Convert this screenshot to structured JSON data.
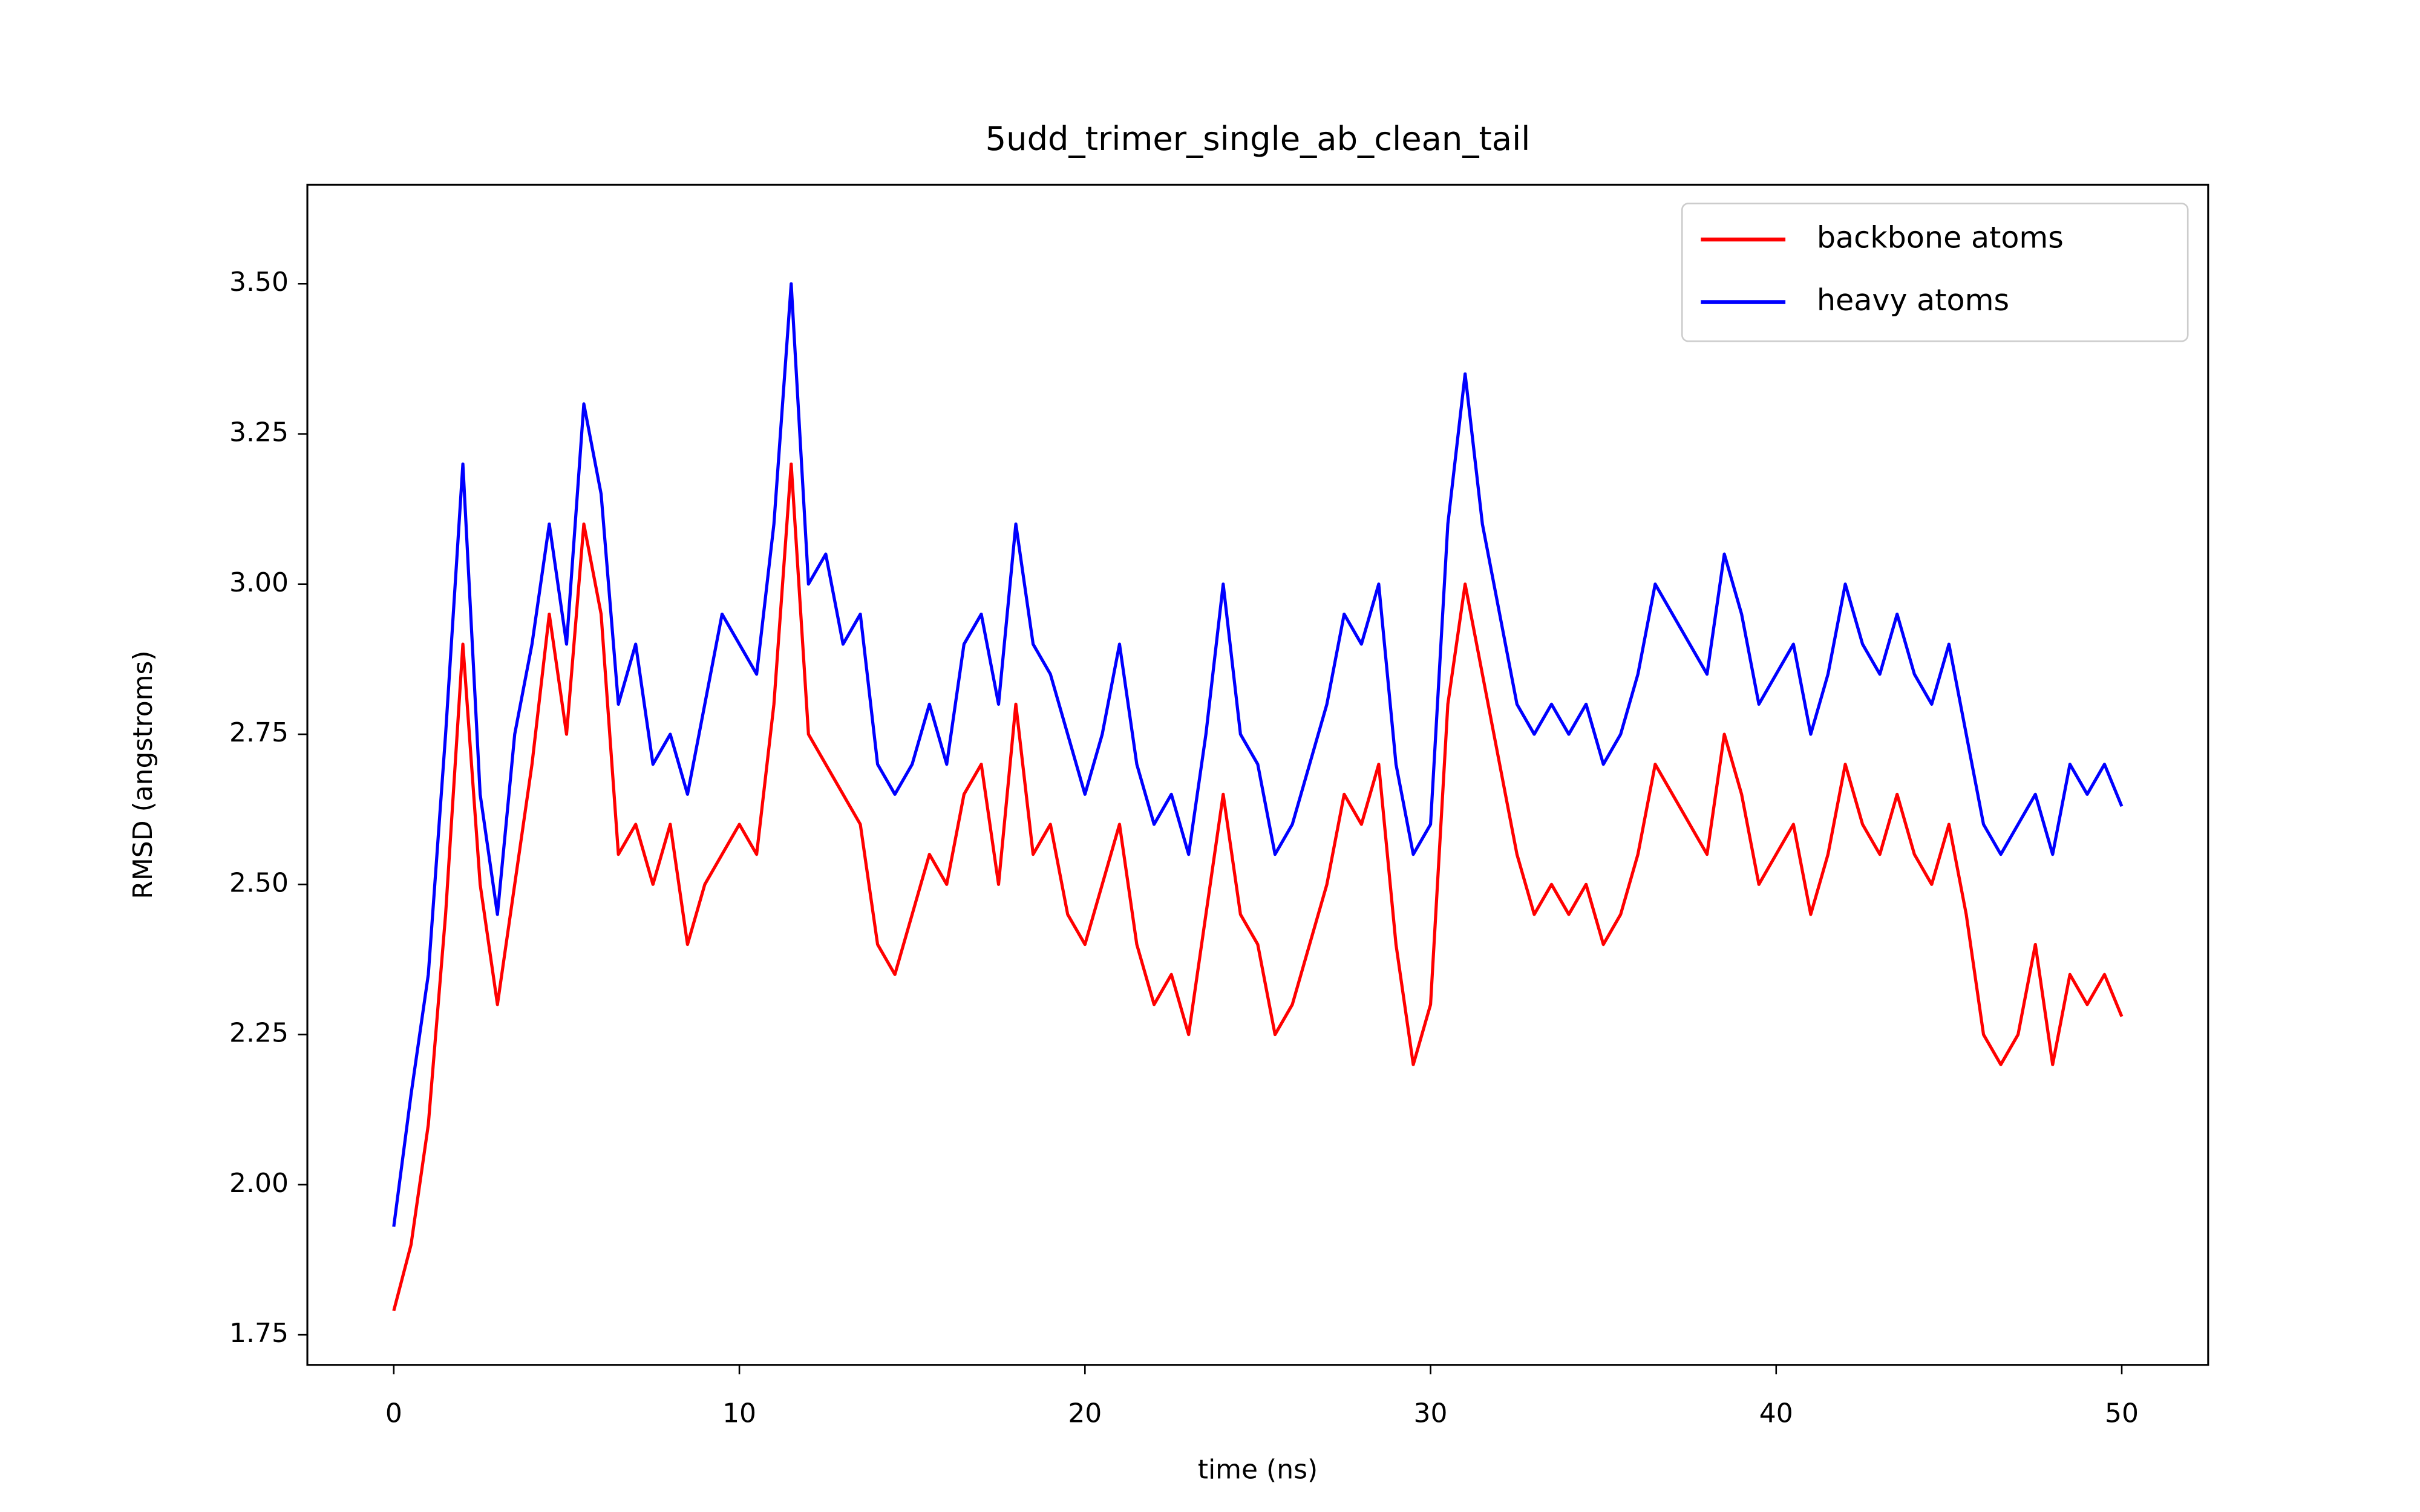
{
  "chart_data": {
    "type": "line",
    "title": "5udd_trimer_single_ab_clean_tail",
    "x_label": "time (ns)",
    "y_label": "RMSD (angstroms)",
    "x": [
      0,
      0.5,
      1,
      1.5,
      2,
      2.5,
      3,
      3.5,
      4,
      4.5,
      5,
      5.5,
      6,
      6.5,
      7,
      7.5,
      8,
      8.5,
      9,
      9.5,
      10,
      10.5,
      11,
      11.5,
      12,
      12.5,
      13,
      13.5,
      14,
      14.5,
      15,
      15.5,
      16,
      16.5,
      17,
      17.5,
      18,
      18.5,
      19,
      19.5,
      20,
      20.5,
      21,
      21.5,
      22,
      22.5,
      23,
      23.5,
      24,
      24.5,
      25,
      25.5,
      26,
      26.5,
      27,
      27.5,
      28,
      28.5,
      29,
      29.5,
      30,
      30.5,
      31,
      31.5,
      32,
      32.5,
      33,
      33.5,
      34,
      34.5,
      35,
      35.5,
      36,
      36.5,
      37,
      37.5,
      38,
      38.5,
      39,
      39.5,
      40,
      40.5,
      41,
      41.5,
      42,
      42.5,
      43,
      43.5,
      44,
      44.5,
      45,
      45.5,
      46,
      46.5,
      47,
      47.5,
      48,
      48.5,
      49,
      49.5,
      50
    ],
    "series": [
      {
        "name": "backbone atoms",
        "color": "#ff0000",
        "values": [
          1.79,
          1.9,
          2.1,
          2.45,
          2.9,
          2.5,
          2.3,
          2.5,
          2.7,
          2.95,
          2.75,
          3.1,
          2.95,
          2.55,
          2.6,
          2.5,
          2.6,
          2.4,
          2.5,
          2.55,
          2.6,
          2.55,
          2.8,
          3.2,
          2.75,
          2.7,
          2.65,
          2.6,
          2.4,
          2.35,
          2.45,
          2.55,
          2.5,
          2.65,
          2.7,
          2.5,
          2.8,
          2.55,
          2.6,
          2.45,
          2.4,
          2.5,
          2.6,
          2.4,
          2.3,
          2.35,
          2.25,
          2.45,
          2.65,
          2.45,
          2.4,
          2.25,
          2.3,
          2.4,
          2.5,
          2.65,
          2.6,
          2.7,
          2.4,
          2.2,
          2.3,
          2.8,
          3.0,
          2.85,
          2.7,
          2.55,
          2.45,
          2.5,
          2.45,
          2.5,
          2.4,
          2.45,
          2.55,
          2.7,
          2.65,
          2.6,
          2.55,
          2.75,
          2.65,
          2.5,
          2.55,
          2.6,
          2.45,
          2.55,
          2.7,
          2.6,
          2.55,
          2.65,
          2.55,
          2.5,
          2.6,
          2.45,
          2.25,
          2.2,
          2.25,
          2.4,
          2.2,
          2.35,
          2.3,
          2.35,
          2.28
        ]
      },
      {
        "name": "heavy atoms",
        "color": "#0000ff",
        "values": [
          1.93,
          2.15,
          2.35,
          2.75,
          3.2,
          2.65,
          2.45,
          2.75,
          2.9,
          3.1,
          2.9,
          3.3,
          3.15,
          2.8,
          2.9,
          2.7,
          2.75,
          2.65,
          2.8,
          2.95,
          2.9,
          2.85,
          3.1,
          3.5,
          3.0,
          3.05,
          2.9,
          2.95,
          2.7,
          2.65,
          2.7,
          2.8,
          2.7,
          2.9,
          2.95,
          2.8,
          3.1,
          2.9,
          2.85,
          2.75,
          2.65,
          2.75,
          2.9,
          2.7,
          2.6,
          2.65,
          2.55,
          2.75,
          3.0,
          2.75,
          2.7,
          2.55,
          2.6,
          2.7,
          2.8,
          2.95,
          2.9,
          3.0,
          2.7,
          2.55,
          2.6,
          3.1,
          3.35,
          3.1,
          2.95,
          2.8,
          2.75,
          2.8,
          2.75,
          2.8,
          2.7,
          2.75,
          2.85,
          3.0,
          2.95,
          2.9,
          2.85,
          3.05,
          2.95,
          2.8,
          2.85,
          2.9,
          2.75,
          2.85,
          3.0,
          2.9,
          2.85,
          2.95,
          2.85,
          2.8,
          2.9,
          2.75,
          2.6,
          2.55,
          2.6,
          2.65,
          2.55,
          2.7,
          2.65,
          2.7,
          2.63
        ]
      }
    ],
    "xlim": [
      -2.5,
      52.5
    ],
    "ylim": [
      1.7,
      3.665
    ],
    "xticks": [
      0,
      10,
      20,
      30,
      40,
      50
    ],
    "yticks": [
      1.75,
      {
        "value": 2,
        "label": "2.00"
      },
      2.25,
      {
        "value": 2.5,
        "label": "2.50"
      },
      2.75,
      {
        "value": 3,
        "label": "3.00"
      },
      3.25,
      {
        "value": 3.5,
        "label": "3.50"
      }
    ],
    "legend": "upper right"
  }
}
